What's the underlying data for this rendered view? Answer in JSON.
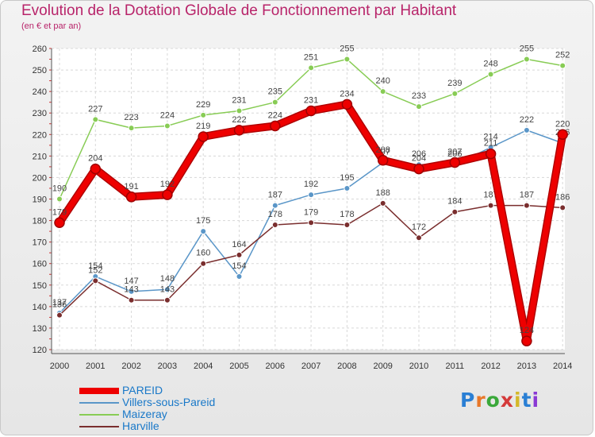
{
  "title": "Evolution de la Dotation Globale de Fonctionnement par Habitant",
  "subtitle": "(en € et par an)",
  "logo": {
    "text": "Proxiti",
    "letters": [
      "P",
      "r",
      "o",
      "x",
      "i",
      "t",
      "i"
    ],
    "colors": [
      "#2a7fd4",
      "#e8782a",
      "#3aa83a",
      "#d43a3a",
      "#d4b82a",
      "#2a7fd4",
      "#8a3ad4"
    ]
  },
  "chart_data": {
    "type": "line",
    "title": "Evolution de la Dotation Globale de Fonctionnement par Habitant",
    "ylabel": "(en € et par an)",
    "xlabel": "",
    "ylim": [
      120,
      260
    ],
    "yticks": [
      120,
      130,
      140,
      150,
      160,
      170,
      180,
      190,
      200,
      210,
      220,
      230,
      240,
      250,
      260
    ],
    "x": [
      "2000",
      "2001",
      "2002",
      "2003",
      "2004",
      "2005",
      "2006",
      "2007",
      "2008",
      "2009",
      "2010",
      "2011",
      "2012",
      "2013",
      "2014"
    ],
    "grid": true,
    "legend_position": "bottom-left",
    "series": [
      {
        "name": "PAREID",
        "color": "#ee0000",
        "values": [
          179,
          204,
          191,
          192,
          219,
          222,
          224,
          231,
          234,
          208,
          204,
          207,
          211,
          124,
          220
        ]
      },
      {
        "name": "Villers-sous-Pareid",
        "color": "#5a96c8",
        "values": [
          137,
          154,
          147,
          148,
          175,
          154,
          187,
          192,
          195,
          207,
          206,
          206,
          214,
          222,
          216
        ]
      },
      {
        "name": "Maizeray",
        "color": "#88cc55",
        "values": [
          190,
          227,
          223,
          224,
          229,
          231,
          235,
          251,
          255,
          240,
          233,
          239,
          248,
          255,
          252
        ]
      },
      {
        "name": "Harville",
        "color": "#7a2e2e",
        "values": [
          136,
          152,
          143,
          143,
          160,
          164,
          178,
          179,
          178,
          188,
          172,
          184,
          187,
          187,
          186
        ]
      }
    ]
  }
}
